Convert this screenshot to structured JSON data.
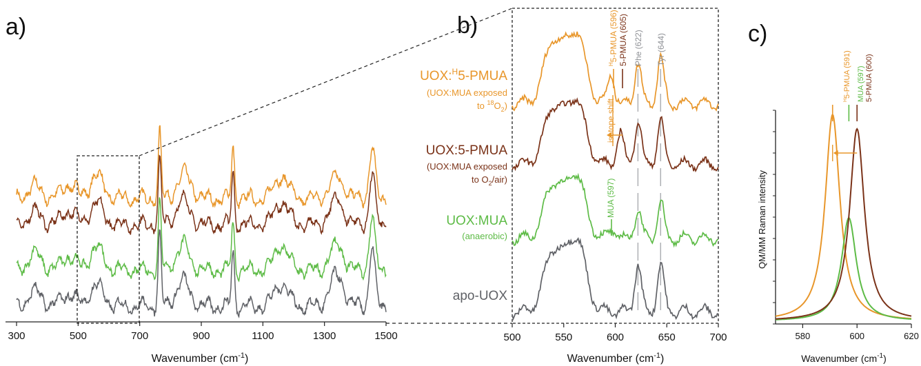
{
  "colors": {
    "orange": "#E8962A",
    "brown": "#7A3218",
    "green": "#5DBB46",
    "gray": "#5F6166",
    "refline": "#AEB0B4"
  },
  "panels": {
    "a": {
      "letter": "a)",
      "xlabel": "Wavenumber (cm",
      "xlabel_sup": "-1",
      "xlabel_end": ")"
    },
    "b": {
      "letter": "b)",
      "xlabel": "Wavenumber (cm",
      "xlabel_sup": "-1",
      "xlabel_end": ")"
    },
    "c": {
      "letter": "c)",
      "xlabel": "Wavenumber (cm",
      "xlabel_sup": "-1",
      "xlabel_end": ")",
      "ylabel": "QM/MM Raman intensity"
    }
  },
  "sample_labels": [
    {
      "pre": "UOX:",
      "sup": "H",
      "post": "5-PMUA",
      "sub1": "(UOX:MUA exposed",
      "sub2_pre": "to ",
      "sub2_sup": "18",
      "sub2_mid": "O",
      "sub2_sub": "2",
      "sub2_end": ")",
      "color": "orange"
    },
    {
      "pre": "UOX:5-PMUA",
      "sup": "",
      "post": "",
      "sub1": "(UOX:MUA exposed",
      "sub2_pre": "to O",
      "sub2_sup": "",
      "sub2_mid": "",
      "sub2_sub": "2",
      "sub2_end": "/air)",
      "color": "brown"
    },
    {
      "pre": "UOX:MUA",
      "sup": "",
      "post": "",
      "sub1": "(anaerobic)",
      "color": "green"
    },
    {
      "pre": "apo-UOX",
      "sup": "",
      "post": "",
      "sub1": "",
      "color": "gray"
    }
  ],
  "annotations_b": {
    "h5pmua": {
      "sup": "H",
      "text": "5-PMUA (596)"
    },
    "pmua": "5-PMUA (605)",
    "phe": "Phe (622)",
    "tyr": "Tyr (644)",
    "mua": "MUA (597)",
    "isotope": "isotope shift"
  },
  "annotations_c": {
    "h5pmua": {
      "sup": "H",
      "text": "5-PMUA (591)"
    },
    "mua": "MUA (597)",
    "pmua": "5-PMUA (600)"
  },
  "chart_data": [
    {
      "type": "line",
      "panel": "a",
      "xlabel": "Wavenumber (cm-1)",
      "xlim": [
        300,
        1500
      ],
      "xticks": [
        300,
        500,
        700,
        900,
        1100,
        1300,
        1500
      ],
      "zoom_box": [
        500,
        700
      ],
      "major_peaks": [
        762,
        1003,
        1455
      ],
      "series": [
        {
          "name": "UOX:H5-PMUA",
          "color": "orange",
          "peaks": [
            [
              360,
              0.3
            ],
            [
              470,
              0.35
            ],
            [
              560,
              0.55
            ],
            [
              765,
              1.6
            ],
            [
              845,
              0.6
            ],
            [
              1003,
              1.2
            ],
            [
              1160,
              0.55
            ],
            [
              1340,
              0.55
            ],
            [
              1455,
              1.25
            ]
          ]
        },
        {
          "name": "UOX:5-PMUA",
          "color": "brown",
          "peaks": [
            [
              360,
              0.3
            ],
            [
              470,
              0.35
            ],
            [
              560,
              0.5
            ],
            [
              765,
              1.6
            ],
            [
              840,
              0.6
            ],
            [
              1003,
              1.25
            ],
            [
              1160,
              0.55
            ],
            [
              1340,
              0.6
            ],
            [
              1455,
              1.25
            ]
          ]
        },
        {
          "name": "UOX:MUA",
          "color": "green",
          "peaks": [
            [
              360,
              0.4
            ],
            [
              470,
              0.35
            ],
            [
              560,
              0.55
            ],
            [
              765,
              1.65
            ],
            [
              840,
              0.6
            ],
            [
              1003,
              1.15
            ],
            [
              1160,
              0.6
            ],
            [
              1340,
              0.6
            ],
            [
              1455,
              1.3
            ]
          ]
        },
        {
          "name": "apo-UOX",
          "color": "gray",
          "peaks": [
            [
              360,
              0.35
            ],
            [
              470,
              0.3
            ],
            [
              560,
              0.5
            ],
            [
              765,
              1.8
            ],
            [
              840,
              0.6
            ],
            [
              1003,
              1.3
            ],
            [
              1160,
              0.55
            ],
            [
              1340,
              0.75
            ],
            [
              1455,
              1.4
            ]
          ]
        }
      ]
    },
    {
      "type": "line",
      "panel": "b",
      "xlabel": "Wavenumber (cm-1)",
      "xlim": [
        500,
        700
      ],
      "xticks": [
        500,
        550,
        600,
        650,
        700
      ],
      "reference_lines": [
        622,
        644
      ],
      "series": [
        {
          "name": "UOX:H5-PMUA",
          "color": "orange",
          "peaks": [
            [
              540,
              0.75
            ],
            [
              562,
              0.85
            ],
            [
              596,
              0.35
            ],
            [
              622,
              0.5
            ],
            [
              644,
              0.55
            ]
          ]
        },
        {
          "name": "UOX:5-PMUA",
          "color": "brown",
          "peaks": [
            [
              540,
              0.7
            ],
            [
              562,
              0.8
            ],
            [
              605,
              0.4
            ],
            [
              622,
              0.55
            ],
            [
              644,
              0.55
            ]
          ]
        },
        {
          "name": "UOX:MUA",
          "color": "green",
          "peaks": [
            [
              540,
              0.65
            ],
            [
              562,
              0.75
            ],
            [
              597,
              0.12
            ],
            [
              622,
              0.35
            ],
            [
              644,
              0.45
            ]
          ]
        },
        {
          "name": "apo-UOX",
          "color": "gray",
          "peaks": [
            [
              540,
              0.7
            ],
            [
              562,
              0.85
            ],
            [
              622,
              0.55
            ],
            [
              644,
              0.55
            ]
          ]
        }
      ]
    },
    {
      "type": "line",
      "panel": "c",
      "xlabel": "Wavenumber (cm-1)",
      "ylabel": "QM/MM Raman intensity",
      "xlim": [
        570,
        620
      ],
      "xticks": [
        580,
        600,
        620
      ],
      "series": [
        {
          "name": "H5-PMUA",
          "color": "orange",
          "center": 591,
          "amplitude": 1.0,
          "width": 3.3
        },
        {
          "name": "MUA",
          "color": "green",
          "center": 597,
          "amplitude": 0.5,
          "width": 3.3
        },
        {
          "name": "5-PMUA",
          "color": "brown",
          "center": 600,
          "amplitude": 0.93,
          "width": 3.3
        }
      ]
    }
  ]
}
